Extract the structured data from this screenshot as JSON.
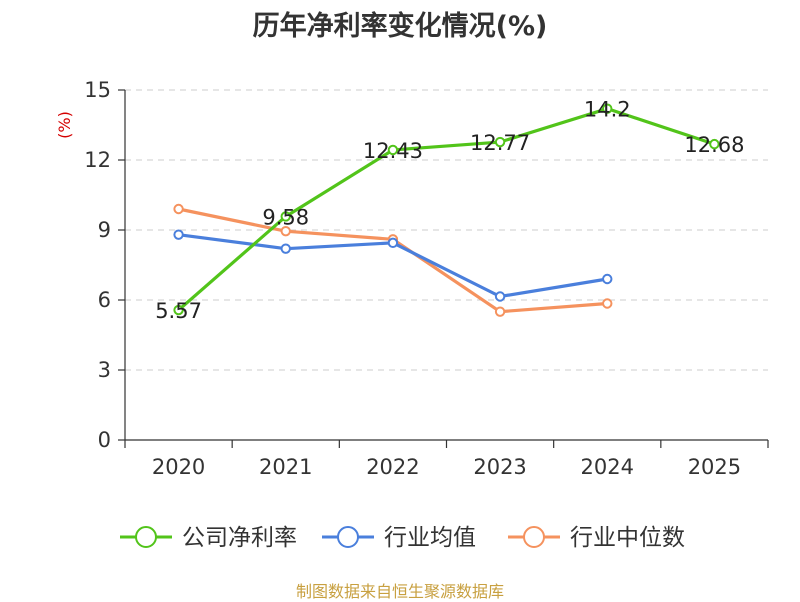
{
  "chart_data": {
    "type": "line",
    "title": "历年净利率变化情况(%)",
    "ylabel": "(%)",
    "xlabel": "",
    "categories": [
      "2020",
      "2021",
      "2022",
      "2023",
      "2024",
      "2025"
    ],
    "yticks": [
      0,
      3,
      6,
      9,
      12,
      15
    ],
    "ylim": [
      0,
      15
    ],
    "grid": true,
    "legend_position": "bottom",
    "series": [
      {
        "name": "公司净利率",
        "color": "#52c41a",
        "values": [
          5.57,
          9.58,
          12.43,
          12.77,
          14.2,
          12.68
        ],
        "labels": [
          "5.57",
          "9.58",
          "12.43",
          "12.77",
          "14.2",
          "12.68"
        ]
      },
      {
        "name": "行业均值",
        "color": "#4a7fdc",
        "values": [
          8.8,
          8.2,
          8.45,
          6.15,
          6.9,
          null
        ]
      },
      {
        "name": "行业中位数",
        "color": "#f5925e",
        "values": [
          9.9,
          8.95,
          8.6,
          5.5,
          5.85,
          null
        ]
      }
    ]
  },
  "footer": {
    "source": "制图数据来自恒生聚源数据库"
  }
}
